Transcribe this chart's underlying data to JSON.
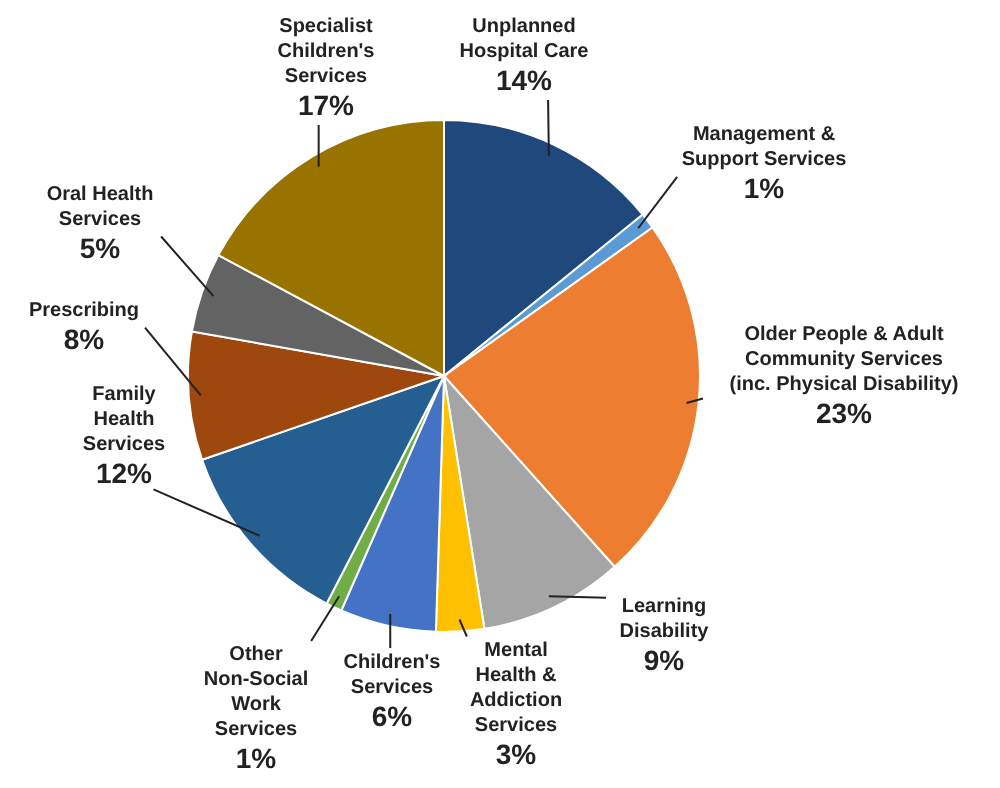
{
  "chart_data": {
    "type": "pie",
    "categories": [
      "Unplanned\nHospital Care",
      "Management &\nSupport Services",
      "Older People & Adult\nCommunity Services\n(inc. Physical Disability)",
      "Learning\nDisability",
      "Mental\nHealth &\nAddiction\nServices",
      "Children's\nServices",
      "Other\nNon-Social\nWork\nServices",
      "Family\nHealth\nServices",
      "Prescribing",
      "Oral Health\nServices",
      "Specialist\nChildren's\nServices"
    ],
    "values": [
      14,
      1,
      23,
      9,
      3,
      6,
      1,
      12,
      8,
      5,
      17
    ],
    "value_labels": [
      "14%",
      "1%",
      "23%",
      "9%",
      "3%",
      "6%",
      "1%",
      "12%",
      "8%",
      "5%",
      "17%"
    ],
    "colors": [
      "#1f497d",
      "#5b9bd5",
      "#ed7d31",
      "#a5a5a5",
      "#ffc000",
      "#4472c4",
      "#70ad47",
      "#255e91",
      "#9e480e",
      "#636363",
      "#997300"
    ]
  }
}
